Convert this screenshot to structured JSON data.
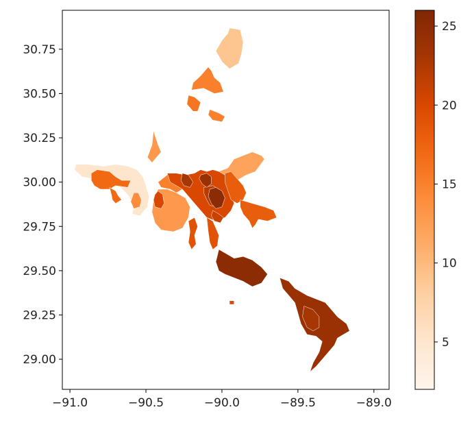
{
  "chart_data": {
    "type": "choropleth",
    "title": "",
    "xlabel": "",
    "ylabel": "",
    "xlim": [
      -91.05,
      -88.9
    ],
    "ylim": [
      28.83,
      30.97
    ],
    "xticks": [
      -91.0,
      -90.5,
      -90.0,
      -89.5,
      -89.0
    ],
    "xtick_labels": [
      "−91.0",
      "−90.5",
      "−90.0",
      "−89.5",
      "−89.0"
    ],
    "yticks": [
      29.0,
      29.25,
      29.5,
      29.75,
      30.0,
      30.25,
      30.5,
      30.75
    ],
    "ytick_labels": [
      "29.00",
      "29.25",
      "29.50",
      "29.75",
      "30.00",
      "30.25",
      "30.50",
      "30.75"
    ],
    "colorbar": {
      "colormap": "Oranges",
      "min": 2,
      "max": 26,
      "ticks": [
        5,
        10,
        15,
        20,
        25
      ],
      "tick_labels": [
        "5",
        "10",
        "15",
        "20",
        "25"
      ]
    },
    "regions": [
      {
        "value": 9,
        "outline": [
          [
            -89.95,
            30.87
          ],
          [
            -89.88,
            30.86
          ],
          [
            -89.86,
            30.79
          ],
          [
            -89.87,
            30.73
          ],
          [
            -89.89,
            30.67
          ],
          [
            -89.95,
            30.64
          ],
          [
            -90.0,
            30.68
          ],
          [
            -90.04,
            30.74
          ],
          [
            -90.0,
            30.8
          ],
          [
            -89.96,
            30.84
          ]
        ]
      },
      {
        "value": 15,
        "outline": [
          [
            -90.19,
            30.56
          ],
          [
            -90.14,
            30.6
          ],
          [
            -90.09,
            30.65
          ],
          [
            -90.07,
            30.63
          ],
          [
            -90.05,
            30.59
          ],
          [
            -90.01,
            30.56
          ],
          [
            -89.99,
            30.51
          ],
          [
            -90.05,
            30.5
          ],
          [
            -90.12,
            30.53
          ],
          [
            -90.2,
            30.52
          ]
        ]
      },
      {
        "value": 16,
        "outline": [
          [
            -90.22,
            30.49
          ],
          [
            -90.18,
            30.48
          ],
          [
            -90.14,
            30.45
          ],
          [
            -90.16,
            30.4
          ],
          [
            -90.19,
            30.4
          ],
          [
            -90.23,
            30.44
          ]
        ]
      },
      {
        "value": 15,
        "outline": [
          [
            -90.08,
            30.41
          ],
          [
            -90.02,
            30.39
          ],
          [
            -89.98,
            30.37
          ],
          [
            -90.0,
            30.34
          ],
          [
            -90.06,
            30.35
          ],
          [
            -90.09,
            30.38
          ]
        ]
      },
      {
        "value": 13,
        "outline": [
          [
            -90.45,
            30.29
          ],
          [
            -90.42,
            30.21
          ],
          [
            -90.4,
            30.17
          ],
          [
            -90.46,
            30.11
          ],
          [
            -90.49,
            30.14
          ],
          [
            -90.46,
            30.21
          ]
        ]
      },
      {
        "value": 12,
        "outline": [
          [
            -90.1,
            30.06
          ],
          [
            -90.02,
            30.06
          ],
          [
            -89.96,
            30.08
          ],
          [
            -89.92,
            30.13
          ],
          [
            -89.86,
            30.15
          ],
          [
            -89.8,
            30.17
          ],
          [
            -89.74,
            30.15
          ],
          [
            -89.72,
            30.13
          ],
          [
            -89.78,
            30.06
          ],
          [
            -89.84,
            30.04
          ],
          [
            -89.9,
            30.01
          ],
          [
            -89.98,
            29.99
          ],
          [
            -90.06,
            29.99
          ]
        ]
      },
      {
        "value": 5,
        "outline": [
          [
            -90.96,
            30.1
          ],
          [
            -90.88,
            30.1
          ],
          [
            -90.78,
            30.09
          ],
          [
            -90.7,
            30.1
          ],
          [
            -90.62,
            30.09
          ],
          [
            -90.56,
            30.07
          ],
          [
            -90.52,
            30.03
          ],
          [
            -90.5,
            29.98
          ],
          [
            -90.48,
            29.92
          ],
          [
            -90.49,
            29.86
          ],
          [
            -90.54,
            29.81
          ],
          [
            -90.59,
            29.82
          ],
          [
            -90.58,
            29.87
          ],
          [
            -90.62,
            29.93
          ],
          [
            -90.68,
            29.98
          ],
          [
            -90.78,
            30.01
          ],
          [
            -90.86,
            30.02
          ],
          [
            -90.92,
            30.03
          ],
          [
            -90.97,
            30.07
          ]
        ]
      },
      {
        "value": 17,
        "outline": [
          [
            -90.86,
            30.05
          ],
          [
            -90.82,
            30.07
          ],
          [
            -90.74,
            30.06
          ],
          [
            -90.7,
            30.03
          ],
          [
            -90.66,
            30.01
          ],
          [
            -90.6,
            30.01
          ],
          [
            -90.62,
            29.97
          ],
          [
            -90.7,
            29.98
          ],
          [
            -90.74,
            29.96
          ],
          [
            -90.8,
            29.96
          ],
          [
            -90.84,
            29.98
          ],
          [
            -90.86,
            30.01
          ]
        ]
      },
      {
        "value": 17,
        "outline": [
          [
            -90.74,
            29.97
          ],
          [
            -90.7,
            29.95
          ],
          [
            -90.68,
            29.92
          ],
          [
            -90.66,
            29.9
          ],
          [
            -90.7,
            29.88
          ],
          [
            -90.72,
            29.9
          ],
          [
            -90.73,
            29.94
          ]
        ]
      },
      {
        "value": 14,
        "outline": [
          [
            -90.58,
            29.94
          ],
          [
            -90.55,
            29.94
          ],
          [
            -90.53,
            29.9
          ],
          [
            -90.54,
            29.86
          ],
          [
            -90.58,
            29.85
          ],
          [
            -90.6,
            29.89
          ]
        ]
      },
      {
        "value": 15,
        "outline": [
          [
            -90.42,
            30.0
          ],
          [
            -90.36,
            30.04
          ],
          [
            -90.3,
            30.05
          ],
          [
            -90.24,
            30.04
          ],
          [
            -90.22,
            30.0
          ],
          [
            -90.26,
            29.96
          ],
          [
            -90.3,
            29.94
          ],
          [
            -90.34,
            29.96
          ],
          [
            -90.4,
            29.97
          ]
        ]
      },
      {
        "value": 13,
        "outline": [
          [
            -90.42,
            29.96
          ],
          [
            -90.36,
            29.96
          ],
          [
            -90.3,
            29.94
          ],
          [
            -90.24,
            29.91
          ],
          [
            -90.21,
            29.86
          ],
          [
            -90.22,
            29.8
          ],
          [
            -90.26,
            29.74
          ],
          [
            -90.32,
            29.72
          ],
          [
            -90.4,
            29.73
          ],
          [
            -90.44,
            29.77
          ],
          [
            -90.46,
            29.83
          ],
          [
            -90.45,
            29.9
          ]
        ]
      },
      {
        "value": 20,
        "outline": [
          [
            -90.42,
            29.95
          ],
          [
            -90.39,
            29.93
          ],
          [
            -90.38,
            29.88
          ],
          [
            -90.4,
            29.85
          ],
          [
            -90.44,
            29.86
          ],
          [
            -90.45,
            29.9
          ],
          [
            -90.44,
            29.93
          ]
        ]
      },
      {
        "value": 20,
        "outline": [
          [
            -90.36,
            30.05
          ],
          [
            -90.3,
            30.05
          ],
          [
            -90.24,
            30.04
          ],
          [
            -90.18,
            30.05
          ],
          [
            -90.14,
            30.07
          ],
          [
            -90.1,
            30.06
          ],
          [
            -90.06,
            30.07
          ],
          [
            -90.02,
            30.06
          ],
          [
            -89.98,
            30.04
          ],
          [
            -89.94,
            30.02
          ],
          [
            -89.92,
            29.98
          ],
          [
            -89.94,
            29.93
          ],
          [
            -89.92,
            29.88
          ],
          [
            -89.94,
            29.84
          ],
          [
            -89.98,
            29.8
          ],
          [
            -90.04,
            29.78
          ],
          [
            -90.1,
            29.8
          ],
          [
            -90.14,
            29.84
          ],
          [
            -90.18,
            29.88
          ],
          [
            -90.22,
            29.92
          ],
          [
            -90.26,
            29.96
          ],
          [
            -90.3,
            29.98
          ],
          [
            -90.34,
            30.0
          ]
        ]
      },
      {
        "value": 22,
        "outline": [
          [
            -90.12,
            29.97
          ],
          [
            -90.06,
            29.98
          ],
          [
            -90.02,
            29.96
          ],
          [
            -90.0,
            29.92
          ],
          [
            -90.01,
            29.88
          ],
          [
            -90.04,
            29.86
          ],
          [
            -90.08,
            29.87
          ],
          [
            -90.1,
            29.9
          ],
          [
            -90.12,
            29.94
          ]
        ]
      },
      {
        "value": 23,
        "outline": [
          [
            -90.26,
            30.05
          ],
          [
            -90.22,
            30.04
          ],
          [
            -90.19,
            30.0
          ],
          [
            -90.21,
            29.97
          ],
          [
            -90.25,
            29.98
          ],
          [
            -90.27,
            30.01
          ]
        ]
      },
      {
        "value": 24,
        "outline": [
          [
            -90.14,
            30.04
          ],
          [
            -90.1,
            30.05
          ],
          [
            -90.07,
            30.03
          ],
          [
            -90.07,
            29.99
          ],
          [
            -90.1,
            29.97
          ],
          [
            -90.13,
            29.99
          ],
          [
            -90.15,
            30.02
          ]
        ]
      },
      {
        "value": 25,
        "outline": [
          [
            -90.08,
            29.96
          ],
          [
            -90.04,
            29.97
          ],
          [
            -90.0,
            29.95
          ],
          [
            -89.98,
            29.91
          ],
          [
            -90.0,
            29.86
          ],
          [
            -90.04,
            29.85
          ],
          [
            -90.07,
            29.88
          ],
          [
            -90.09,
            29.92
          ]
        ]
      },
      {
        "value": 21,
        "outline": [
          [
            -90.06,
            29.84
          ],
          [
            -90.02,
            29.82
          ],
          [
            -89.99,
            29.8
          ],
          [
            -90.01,
            29.77
          ],
          [
            -90.05,
            29.78
          ],
          [
            -90.07,
            29.81
          ]
        ]
      },
      {
        "value": 18,
        "outline": [
          [
            -89.98,
            30.05
          ],
          [
            -89.94,
            30.06
          ],
          [
            -89.9,
            30.02
          ],
          [
            -89.86,
            29.98
          ],
          [
            -89.84,
            29.94
          ],
          [
            -89.86,
            29.9
          ],
          [
            -89.9,
            29.88
          ],
          [
            -89.94,
            29.9
          ],
          [
            -89.96,
            29.95
          ],
          [
            -89.98,
            30.0
          ]
        ]
      },
      {
        "value": 18,
        "outline": [
          [
            -89.88,
            29.9
          ],
          [
            -89.8,
            29.88
          ],
          [
            -89.72,
            29.86
          ],
          [
            -89.66,
            29.84
          ],
          [
            -89.64,
            29.8
          ],
          [
            -89.7,
            29.78
          ],
          [
            -89.76,
            29.79
          ],
          [
            -89.78,
            29.76
          ],
          [
            -89.8,
            29.74
          ],
          [
            -89.82,
            29.78
          ],
          [
            -89.86,
            29.82
          ],
          [
            -89.88,
            29.86
          ]
        ]
      },
      {
        "value": 19,
        "outline": [
          [
            -90.22,
            29.78
          ],
          [
            -90.18,
            29.8
          ],
          [
            -90.16,
            29.75
          ],
          [
            -90.18,
            29.7
          ],
          [
            -90.17,
            29.65
          ],
          [
            -90.2,
            29.62
          ],
          [
            -90.22,
            29.66
          ],
          [
            -90.21,
            29.72
          ]
        ]
      },
      {
        "value": 19,
        "outline": [
          [
            -90.1,
            29.8
          ],
          [
            -90.06,
            29.78
          ],
          [
            -90.04,
            29.74
          ],
          [
            -90.02,
            29.7
          ],
          [
            -90.03,
            29.64
          ],
          [
            -90.06,
            29.62
          ],
          [
            -90.08,
            29.66
          ],
          [
            -90.09,
            29.72
          ]
        ]
      },
      {
        "value": 25,
        "outline": [
          [
            -90.02,
            29.62
          ],
          [
            -89.98,
            29.6
          ],
          [
            -89.92,
            29.57
          ],
          [
            -89.86,
            29.58
          ],
          [
            -89.8,
            29.56
          ],
          [
            -89.74,
            29.52
          ],
          [
            -89.7,
            29.48
          ],
          [
            -89.74,
            29.43
          ],
          [
            -89.8,
            29.41
          ],
          [
            -89.86,
            29.44
          ],
          [
            -89.92,
            29.46
          ],
          [
            -89.98,
            29.48
          ],
          [
            -90.02,
            29.5
          ],
          [
            -90.04,
            29.55
          ]
        ]
      },
      {
        "value": 24,
        "outline": [
          [
            -89.62,
            29.46
          ],
          [
            -89.56,
            29.44
          ],
          [
            -89.52,
            29.4
          ],
          [
            -89.44,
            29.36
          ],
          [
            -89.38,
            29.34
          ],
          [
            -89.32,
            29.32
          ],
          [
            -89.28,
            29.28
          ],
          [
            -89.24,
            29.24
          ],
          [
            -89.18,
            29.2
          ],
          [
            -89.16,
            29.16
          ],
          [
            -89.2,
            29.14
          ],
          [
            -89.24,
            29.12
          ],
          [
            -89.26,
            29.08
          ],
          [
            -89.3,
            29.04
          ],
          [
            -89.34,
            29.0
          ],
          [
            -89.38,
            28.96
          ],
          [
            -89.42,
            28.93
          ],
          [
            -89.4,
            28.98
          ],
          [
            -89.36,
            29.04
          ],
          [
            -89.34,
            29.1
          ],
          [
            -89.38,
            29.13
          ],
          [
            -89.44,
            29.14
          ],
          [
            -89.48,
            29.2
          ],
          [
            -89.5,
            29.26
          ],
          [
            -89.52,
            29.32
          ],
          [
            -89.56,
            29.36
          ],
          [
            -89.6,
            29.4
          ]
        ]
      },
      {
        "value": 23,
        "outline": [
          [
            -89.46,
            29.3
          ],
          [
            -89.4,
            29.28
          ],
          [
            -89.36,
            29.24
          ],
          [
            -89.36,
            29.18
          ],
          [
            -89.4,
            29.16
          ],
          [
            -89.44,
            29.18
          ],
          [
            -89.47,
            29.24
          ]
        ]
      },
      {
        "value": 20,
        "outline": [
          [
            -89.95,
            29.33
          ],
          [
            -89.92,
            29.33
          ],
          [
            -89.92,
            29.31
          ],
          [
            -89.95,
            29.31
          ]
        ]
      }
    ]
  }
}
